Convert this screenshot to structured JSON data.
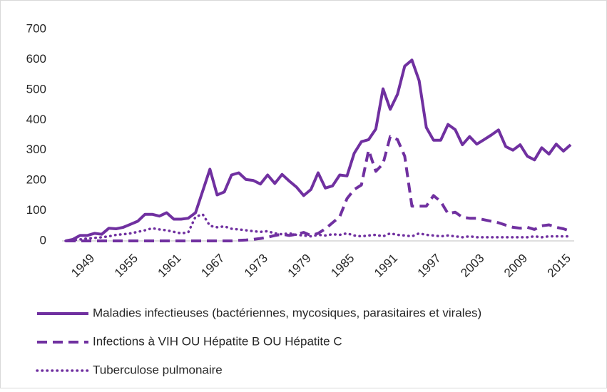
{
  "chart_data": {
    "type": "line",
    "categories": [
      null,
      null,
      null,
      "1949",
      null,
      null,
      null,
      null,
      null,
      "1955",
      null,
      null,
      null,
      null,
      null,
      "1961",
      null,
      null,
      null,
      null,
      null,
      "1967",
      null,
      null,
      null,
      null,
      null,
      "1973",
      null,
      null,
      null,
      null,
      null,
      "1979",
      null,
      null,
      null,
      null,
      null,
      "1985",
      null,
      null,
      null,
      null,
      null,
      "1991",
      null,
      null,
      null,
      null,
      null,
      "1997",
      null,
      null,
      null,
      null,
      null,
      "2003",
      null,
      null,
      null,
      null,
      null,
      "2009",
      null,
      null,
      null,
      null,
      null,
      "2015",
      null
    ],
    "series": [
      {
        "name": "Maladies infectieuses (bactériennes, mycosiques, parasitaires et virales)",
        "color": "#7030a0",
        "style": "solid",
        "values": [
          0,
          5,
          18,
          18,
          25,
          22,
          42,
          40,
          45,
          55,
          65,
          88,
          88,
          82,
          93,
          72,
          72,
          75,
          93,
          165,
          237,
          152,
          162,
          218,
          225,
          203,
          200,
          188,
          218,
          190,
          220,
          198,
          178,
          150,
          170,
          225,
          175,
          182,
          218,
          215,
          290,
          328,
          335,
          370,
          503,
          435,
          485,
          578,
          598,
          530,
          375,
          333,
          333,
          385,
          368,
          318,
          345,
          320,
          335,
          350,
          367,
          312,
          300,
          318,
          280,
          268,
          308,
          287,
          320,
          297,
          318
        ]
      },
      {
        "name": "Infections à VIH OU Hépatite B OU Hépatite C",
        "color": "#7030a0",
        "style": "dashed",
        "values": [
          0,
          0,
          0,
          0,
          0,
          0,
          0,
          0,
          0,
          0,
          0,
          0,
          0,
          0,
          0,
          0,
          0,
          0,
          0,
          0,
          0,
          0,
          0,
          0,
          2,
          3,
          5,
          8,
          12,
          18,
          22,
          18,
          22,
          28,
          18,
          25,
          40,
          60,
          80,
          140,
          170,
          185,
          300,
          230,
          255,
          345,
          335,
          280,
          115,
          115,
          115,
          150,
          130,
          90,
          95,
          78,
          75,
          75,
          70,
          65,
          60,
          52,
          45,
          42,
          45,
          38,
          50,
          53,
          45,
          40,
          32
        ]
      },
      {
        "name": "Tuberculose pulmonaire",
        "color": "#7030a0",
        "style": "dotted",
        "values": [
          0,
          2,
          5,
          8,
          10,
          12,
          15,
          20,
          22,
          25,
          30,
          35,
          42,
          38,
          35,
          30,
          25,
          28,
          80,
          88,
          50,
          45,
          48,
          40,
          38,
          35,
          32,
          30,
          32,
          25,
          22,
          25,
          20,
          18,
          15,
          20,
          18,
          22,
          20,
          25,
          18,
          15,
          18,
          20,
          15,
          25,
          20,
          18,
          15,
          25,
          20,
          18,
          15,
          18,
          15,
          12,
          15,
          12,
          12,
          12,
          12,
          12,
          12,
          12,
          12,
          15,
          12,
          15,
          15,
          15,
          15
        ]
      }
    ],
    "ylim": [
      0,
      700
    ],
    "yticks": [
      0,
      100,
      200,
      300,
      400,
      500,
      600,
      700
    ],
    "grid": false
  }
}
